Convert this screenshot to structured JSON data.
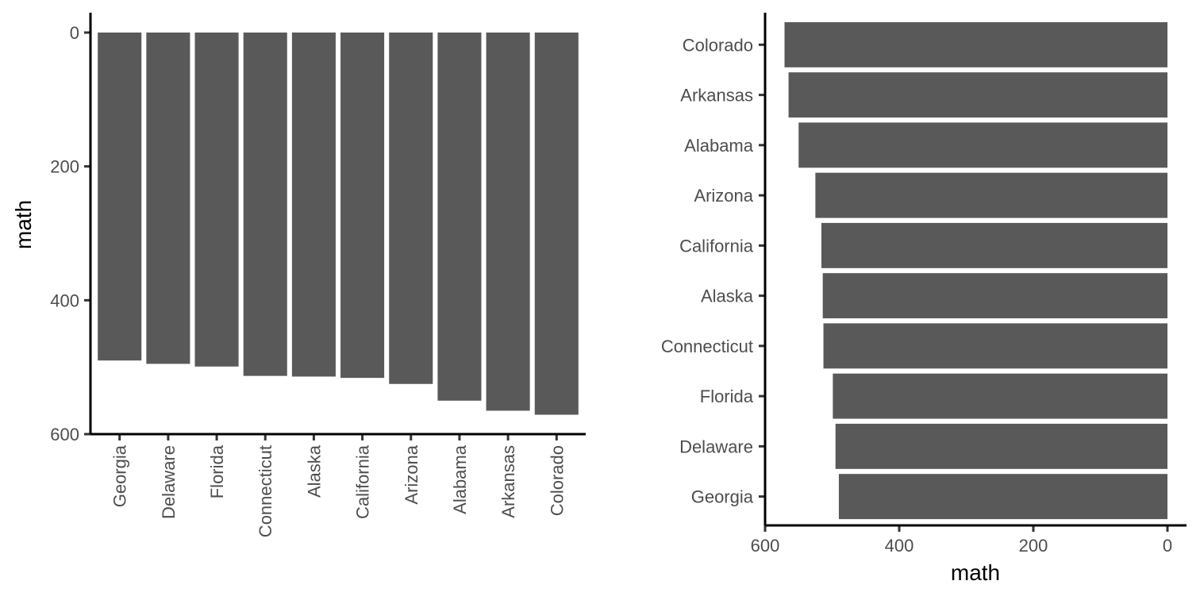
{
  "colors": {
    "bar": "#595959",
    "axis": "#000000",
    "tick_text": "#4d4d4d"
  },
  "chart_data": [
    {
      "type": "bar",
      "orientation": "vertical",
      "y_axis_reversed": true,
      "categories": [
        "Georgia",
        "Delaware",
        "Florida",
        "Connecticut",
        "Alaska",
        "California",
        "Arizona",
        "Alabama",
        "Arkansas",
        "Colorado"
      ],
      "values": [
        490,
        495,
        499,
        513,
        514,
        516,
        525,
        550,
        565,
        571
      ],
      "xlabel": "",
      "ylabel": "math",
      "ylim": [
        0,
        600
      ],
      "yticks": [
        "0",
        "200",
        "400",
        "600"
      ],
      "grid": false
    },
    {
      "type": "bar",
      "orientation": "horizontal",
      "x_axis_reversed": true,
      "categories": [
        "Georgia",
        "Delaware",
        "Florida",
        "Connecticut",
        "Alaska",
        "California",
        "Arizona",
        "Alabama",
        "Arkansas",
        "Colorado"
      ],
      "values": [
        490,
        495,
        499,
        513,
        514,
        516,
        525,
        550,
        565,
        571
      ],
      "xlabel": "math",
      "ylabel": "",
      "xlim": [
        0,
        600
      ],
      "xticks": [
        "600",
        "400",
        "200",
        "0"
      ],
      "grid": false
    }
  ]
}
